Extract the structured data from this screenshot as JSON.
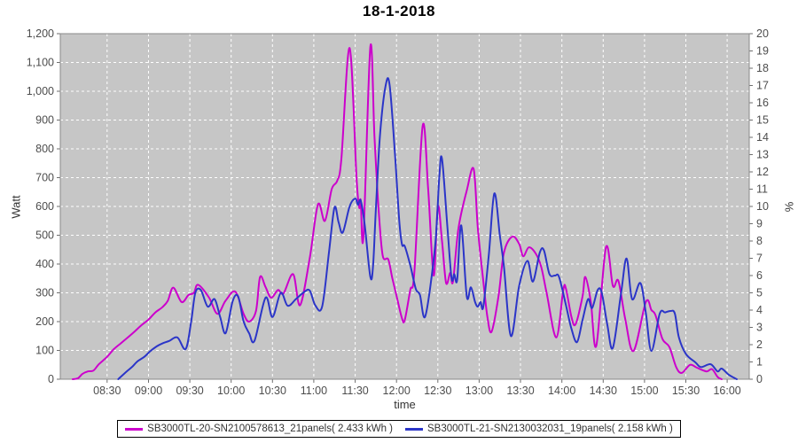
{
  "chart_data": {
    "type": "line",
    "title": "18-1-2018",
    "xlabel": "time",
    "ylabel_left": "Watt",
    "ylabel_right": "%",
    "grid": "white dashed on light-gray plot background",
    "legend_position": "bottom",
    "plot_bg": "#c6c6c6",
    "x_domain": [
      "07:56",
      "16:16"
    ],
    "x_ticks": [
      "08:30",
      "09:00",
      "09:30",
      "10:00",
      "10:30",
      "11:00",
      "11:30",
      "12:00",
      "12:30",
      "13:00",
      "13:30",
      "14:00",
      "14:30",
      "15:00",
      "15:30",
      "16:00"
    ],
    "y_left": {
      "min": 0,
      "max": 1200,
      "step": 100,
      "tick_labels": [
        "0",
        "100",
        "200",
        "300",
        "400",
        "500",
        "600",
        "700",
        "800",
        "900",
        "1,000",
        "1,100",
        "1,200"
      ]
    },
    "y_right": {
      "min": 0,
      "max": 20,
      "step": 1,
      "tick_labels": [
        "0",
        "1",
        "2",
        "3",
        "4",
        "5",
        "6",
        "7",
        "8",
        "9",
        "10",
        "11",
        "12",
        "13",
        "14",
        "15",
        "16",
        "17",
        "18",
        "19",
        "20"
      ]
    },
    "series": [
      {
        "name": "SB3000TL-20-SN2100578613_21panels( 2.433 kWh )",
        "color": "#cc00cc",
        "points": [
          [
            "08:05",
            0
          ],
          [
            "08:09",
            4
          ],
          [
            "08:12",
            18
          ],
          [
            "08:16",
            27
          ],
          [
            "08:20",
            30
          ],
          [
            "08:24",
            52
          ],
          [
            "08:30",
            78
          ],
          [
            "08:35",
            105
          ],
          [
            "08:40",
            125
          ],
          [
            "08:45",
            145
          ],
          [
            "08:50",
            166
          ],
          [
            "08:55",
            188
          ],
          [
            "09:00",
            207
          ],
          [
            "09:05",
            232
          ],
          [
            "09:10",
            250
          ],
          [
            "09:14",
            272
          ],
          [
            "09:18",
            318
          ],
          [
            "09:24",
            268
          ],
          [
            "09:29",
            292
          ],
          [
            "09:33",
            300
          ],
          [
            "09:36",
            328
          ],
          [
            "09:44",
            283
          ],
          [
            "09:50",
            227
          ],
          [
            "09:56",
            273
          ],
          [
            "10:03",
            304
          ],
          [
            "10:09",
            227
          ],
          [
            "10:13",
            200
          ],
          [
            "10:18",
            237
          ],
          [
            "10:21",
            355
          ],
          [
            "10:25",
            320
          ],
          [
            "10:29",
            283
          ],
          [
            "10:34",
            310
          ],
          [
            "10:38",
            298
          ],
          [
            "10:45",
            365
          ],
          [
            "10:50",
            257
          ],
          [
            "10:57",
            420
          ],
          [
            "11:03",
            607
          ],
          [
            "11:08",
            550
          ],
          [
            "11:13",
            660
          ],
          [
            "11:17",
            690
          ],
          [
            "11:20",
            765
          ],
          [
            "11:26",
            1150
          ],
          [
            "11:31",
            700
          ],
          [
            "11:33",
            596
          ],
          [
            "11:34",
            622
          ],
          [
            "11:36",
            495
          ],
          [
            "11:41",
            1155
          ],
          [
            "11:44",
            845
          ],
          [
            "11:47",
            590
          ],
          [
            "11:50",
            430
          ],
          [
            "11:54",
            416
          ],
          [
            "11:57",
            350
          ],
          [
            "12:00",
            290
          ],
          [
            "12:04",
            211
          ],
          [
            "12:06",
            206
          ],
          [
            "12:10",
            310
          ],
          [
            "12:13",
            375
          ],
          [
            "12:19",
            880
          ],
          [
            "12:23",
            660
          ],
          [
            "12:27",
            360
          ],
          [
            "12:30",
            600
          ],
          [
            "12:33",
            480
          ],
          [
            "12:36",
            334
          ],
          [
            "12:39",
            370
          ],
          [
            "12:41",
            339
          ],
          [
            "12:45",
            525
          ],
          [
            "12:51",
            655
          ],
          [
            "12:56",
            730
          ],
          [
            "12:59",
            525
          ],
          [
            "13:03",
            340
          ],
          [
            "13:06",
            216
          ],
          [
            "13:09",
            165
          ],
          [
            "13:14",
            288
          ],
          [
            "13:18",
            440
          ],
          [
            "13:24",
            495
          ],
          [
            "13:29",
            470
          ],
          [
            "13:32",
            427
          ],
          [
            "13:36",
            458
          ],
          [
            "13:41",
            437
          ],
          [
            "13:45",
            391
          ],
          [
            "13:49",
            298
          ],
          [
            "13:56",
            145
          ],
          [
            "14:01",
            309
          ],
          [
            "14:03",
            314
          ],
          [
            "14:07",
            216
          ],
          [
            "14:10",
            191
          ],
          [
            "14:15",
            288
          ],
          [
            "14:17",
            355
          ],
          [
            "14:21",
            270
          ],
          [
            "14:25",
            116
          ],
          [
            "14:32",
            458
          ],
          [
            "14:37",
            324
          ],
          [
            "14:41",
            342
          ],
          [
            "14:46",
            210
          ],
          [
            "14:52",
            98
          ],
          [
            "15:01",
            268
          ],
          [
            "15:05",
            240
          ],
          [
            "15:08",
            222
          ],
          [
            "15:13",
            140
          ],
          [
            "15:18",
            112
          ],
          [
            "15:23",
            42
          ],
          [
            "15:27",
            22
          ],
          [
            "15:33",
            50
          ],
          [
            "15:38",
            40
          ],
          [
            "15:45",
            27
          ],
          [
            "15:49",
            35
          ],
          [
            "15:53",
            8
          ],
          [
            "15:56",
            0
          ]
        ]
      },
      {
        "name": "SB3000TL-21-SN2130032031_19panels( 2.158 kWh )",
        "color": "#2b35c8",
        "points": [
          [
            "08:38",
            0
          ],
          [
            "08:44",
            26
          ],
          [
            "08:48",
            42
          ],
          [
            "08:52",
            62
          ],
          [
            "08:57",
            78
          ],
          [
            "09:01",
            96
          ],
          [
            "09:06",
            114
          ],
          [
            "09:10",
            124
          ],
          [
            "09:15",
            133
          ],
          [
            "09:21",
            145
          ],
          [
            "09:27",
            105
          ],
          [
            "09:31",
            200
          ],
          [
            "09:34",
            300
          ],
          [
            "09:38",
            310
          ],
          [
            "09:43",
            252
          ],
          [
            "09:48",
            278
          ],
          [
            "09:52",
            216
          ],
          [
            "09:56",
            160
          ],
          [
            "10:01",
            270
          ],
          [
            "10:05",
            288
          ],
          [
            "10:09",
            201
          ],
          [
            "10:13",
            160
          ],
          [
            "10:17",
            134
          ],
          [
            "10:25",
            283
          ],
          [
            "10:30",
            216
          ],
          [
            "10:36",
            300
          ],
          [
            "10:41",
            255
          ],
          [
            "10:47",
            278
          ],
          [
            "10:53",
            303
          ],
          [
            "10:57",
            308
          ],
          [
            "11:01",
            257
          ],
          [
            "11:06",
            252
          ],
          [
            "11:11",
            440
          ],
          [
            "11:15",
            596
          ],
          [
            "11:18",
            545
          ],
          [
            "11:21",
            510
          ],
          [
            "11:26",
            600
          ],
          [
            "11:30",
            627
          ],
          [
            "11:32",
            606
          ],
          [
            "11:34",
            620
          ],
          [
            "11:37",
            534
          ],
          [
            "11:41",
            355
          ],
          [
            "11:43",
            396
          ],
          [
            "11:45",
            590
          ],
          [
            "11:48",
            845
          ],
          [
            "11:52",
            1016
          ],
          [
            "11:55",
            1022
          ],
          [
            "11:59",
            775
          ],
          [
            "12:02",
            550
          ],
          [
            "12:04",
            468
          ],
          [
            "12:06",
            462
          ],
          [
            "12:10",
            396
          ],
          [
            "12:14",
            314
          ],
          [
            "12:17",
            293
          ],
          [
            "12:21",
            220
          ],
          [
            "12:28",
            462
          ],
          [
            "12:31",
            700
          ],
          [
            "12:33",
            765
          ],
          [
            "12:37",
            524
          ],
          [
            "12:40",
            350
          ],
          [
            "12:42",
            365
          ],
          [
            "12:44",
            345
          ],
          [
            "12:47",
            534
          ],
          [
            "12:51",
            288
          ],
          [
            "12:54",
            319
          ],
          [
            "12:57",
            268
          ],
          [
            "12:59",
            252
          ],
          [
            "13:01",
            268
          ],
          [
            "13:03",
            252
          ],
          [
            "13:07",
            432
          ],
          [
            "13:11",
            645
          ],
          [
            "13:15",
            500
          ],
          [
            "13:18",
            390
          ],
          [
            "13:23",
            150
          ],
          [
            "13:29",
            324
          ],
          [
            "13:35",
            411
          ],
          [
            "13:39",
            339
          ],
          [
            "13:44",
            440
          ],
          [
            "13:47",
            447
          ],
          [
            "13:51",
            365
          ],
          [
            "13:55",
            360
          ],
          [
            "13:58",
            355
          ],
          [
            "14:03",
            257
          ],
          [
            "14:07",
            175
          ],
          [
            "14:11",
            129
          ],
          [
            "14:15",
            206
          ],
          [
            "14:19",
            278
          ],
          [
            "14:22",
            247
          ],
          [
            "14:26",
            310
          ],
          [
            "14:29",
            300
          ],
          [
            "14:33",
            190
          ],
          [
            "14:37",
            109
          ],
          [
            "14:43",
            300
          ],
          [
            "14:47",
            419
          ],
          [
            "14:51",
            278
          ],
          [
            "14:57",
            334
          ],
          [
            "15:01",
            230
          ],
          [
            "15:05",
            98
          ],
          [
            "15:11",
            227
          ],
          [
            "15:15",
            232
          ],
          [
            "15:19",
            237
          ],
          [
            "15:22",
            228
          ],
          [
            "15:25",
            145
          ],
          [
            "15:30",
            88
          ],
          [
            "15:37",
            58
          ],
          [
            "15:41",
            42
          ],
          [
            "15:48",
            52
          ],
          [
            "15:53",
            27
          ],
          [
            "15:56",
            37
          ],
          [
            "16:01",
            16
          ],
          [
            "16:05",
            5
          ],
          [
            "16:07",
            0
          ]
        ]
      }
    ]
  }
}
